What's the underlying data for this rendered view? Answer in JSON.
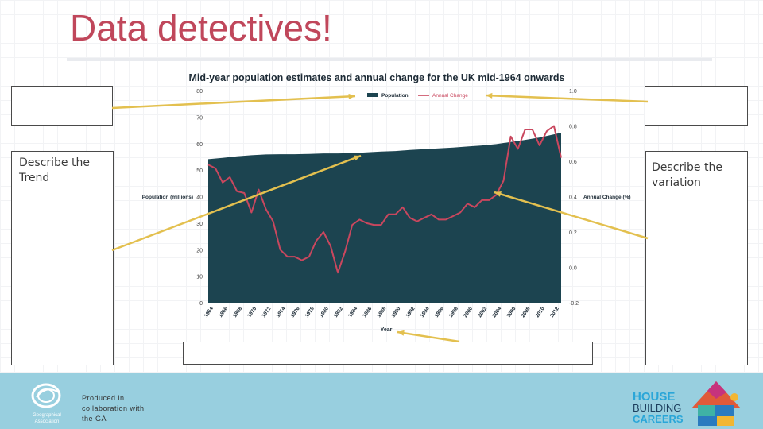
{
  "slide": {
    "title": "Data detectives!",
    "trend_prompt": "Describe the\nTrend",
    "variation_prompt": "Describe the\nvariation"
  },
  "footer": {
    "credit": "Produced in collaboration with the GA",
    "logo_text": "Geographical Association",
    "brand_line1": "HOUSE",
    "brand_line2": "BUILDING",
    "brand_line3": "CAREERS",
    "brand_color": "#2aa6d8"
  },
  "colors": {
    "title": "#c0475b",
    "population_fill": "#1c4450",
    "annual_change_line": "#c9475e",
    "arrow": "#e3c04f"
  },
  "chart_data": {
    "type": "area",
    "title": "Mid-year population estimates and annual change for the UK mid-1964 onwards",
    "xlabel": "Year",
    "ylabel_left": "Population (millions)",
    "ylabel_right": "Annual Change (%)",
    "ylim_left": [
      0,
      80
    ],
    "yticks_left": [
      "0",
      "10",
      "20",
      "30",
      "40",
      "50",
      "60",
      "70",
      "80"
    ],
    "ylim_right": [
      -0.2,
      1.0
    ],
    "yticks_right": [
      "-0.2",
      "0.0",
      "0.2",
      "0.4",
      "0.6",
      "0.8",
      "1.0"
    ],
    "xtick_labels": [
      "1964",
      "1966",
      "1968",
      "1970",
      "1972",
      "1974",
      "1976",
      "1978",
      "1980",
      "1982",
      "1984",
      "1986",
      "1988",
      "1990",
      "1992",
      "1994",
      "1996",
      "1998",
      "2000",
      "2002",
      "2004",
      "2006",
      "2008",
      "2010",
      "2012"
    ],
    "legend_position": "top-center",
    "grid": false,
    "series": [
      {
        "name": "Population",
        "type": "area",
        "axis": "left",
        "x": [
          1964,
          1966,
          1968,
          1970,
          1972,
          1974,
          1976,
          1978,
          1980,
          1982,
          1984,
          1986,
          1988,
          1990,
          1992,
          1994,
          1996,
          1998,
          2000,
          2002,
          2004,
          2006,
          2008,
          2010,
          2013
        ],
        "values": [
          54.1,
          54.6,
          55.2,
          55.6,
          55.9,
          56.0,
          56.0,
          56.1,
          56.3,
          56.3,
          56.4,
          56.7,
          57.0,
          57.2,
          57.6,
          57.9,
          58.2,
          58.5,
          58.9,
          59.3,
          59.8,
          60.6,
          61.4,
          62.3,
          64.1
        ]
      },
      {
        "name": "Annual Change",
        "type": "line",
        "axis": "right",
        "x": [
          1964,
          1965,
          1966,
          1967,
          1968,
          1969,
          1970,
          1971,
          1972,
          1973,
          1974,
          1975,
          1976,
          1977,
          1978,
          1979,
          1980,
          1981,
          1982,
          1983,
          1984,
          1985,
          1986,
          1987,
          1988,
          1989,
          1990,
          1991,
          1992,
          1993,
          1994,
          1995,
          1996,
          1997,
          1998,
          1999,
          2000,
          2001,
          2002,
          2003,
          2004,
          2005,
          2006,
          2007,
          2008,
          2009,
          2010,
          2011,
          2012,
          2013
        ],
        "values": [
          0.58,
          0.56,
          0.48,
          0.51,
          0.43,
          0.42,
          0.31,
          0.44,
          0.33,
          0.26,
          0.1,
          0.06,
          0.06,
          0.04,
          0.06,
          0.15,
          0.2,
          0.12,
          -0.03,
          0.09,
          0.24,
          0.27,
          0.25,
          0.24,
          0.24,
          0.3,
          0.3,
          0.34,
          0.28,
          0.26,
          0.28,
          0.3,
          0.27,
          0.27,
          0.29,
          0.31,
          0.36,
          0.34,
          0.38,
          0.38,
          0.41,
          0.49,
          0.74,
          0.67,
          0.78,
          0.78,
          0.69,
          0.77,
          0.8,
          0.62
        ]
      }
    ]
  }
}
